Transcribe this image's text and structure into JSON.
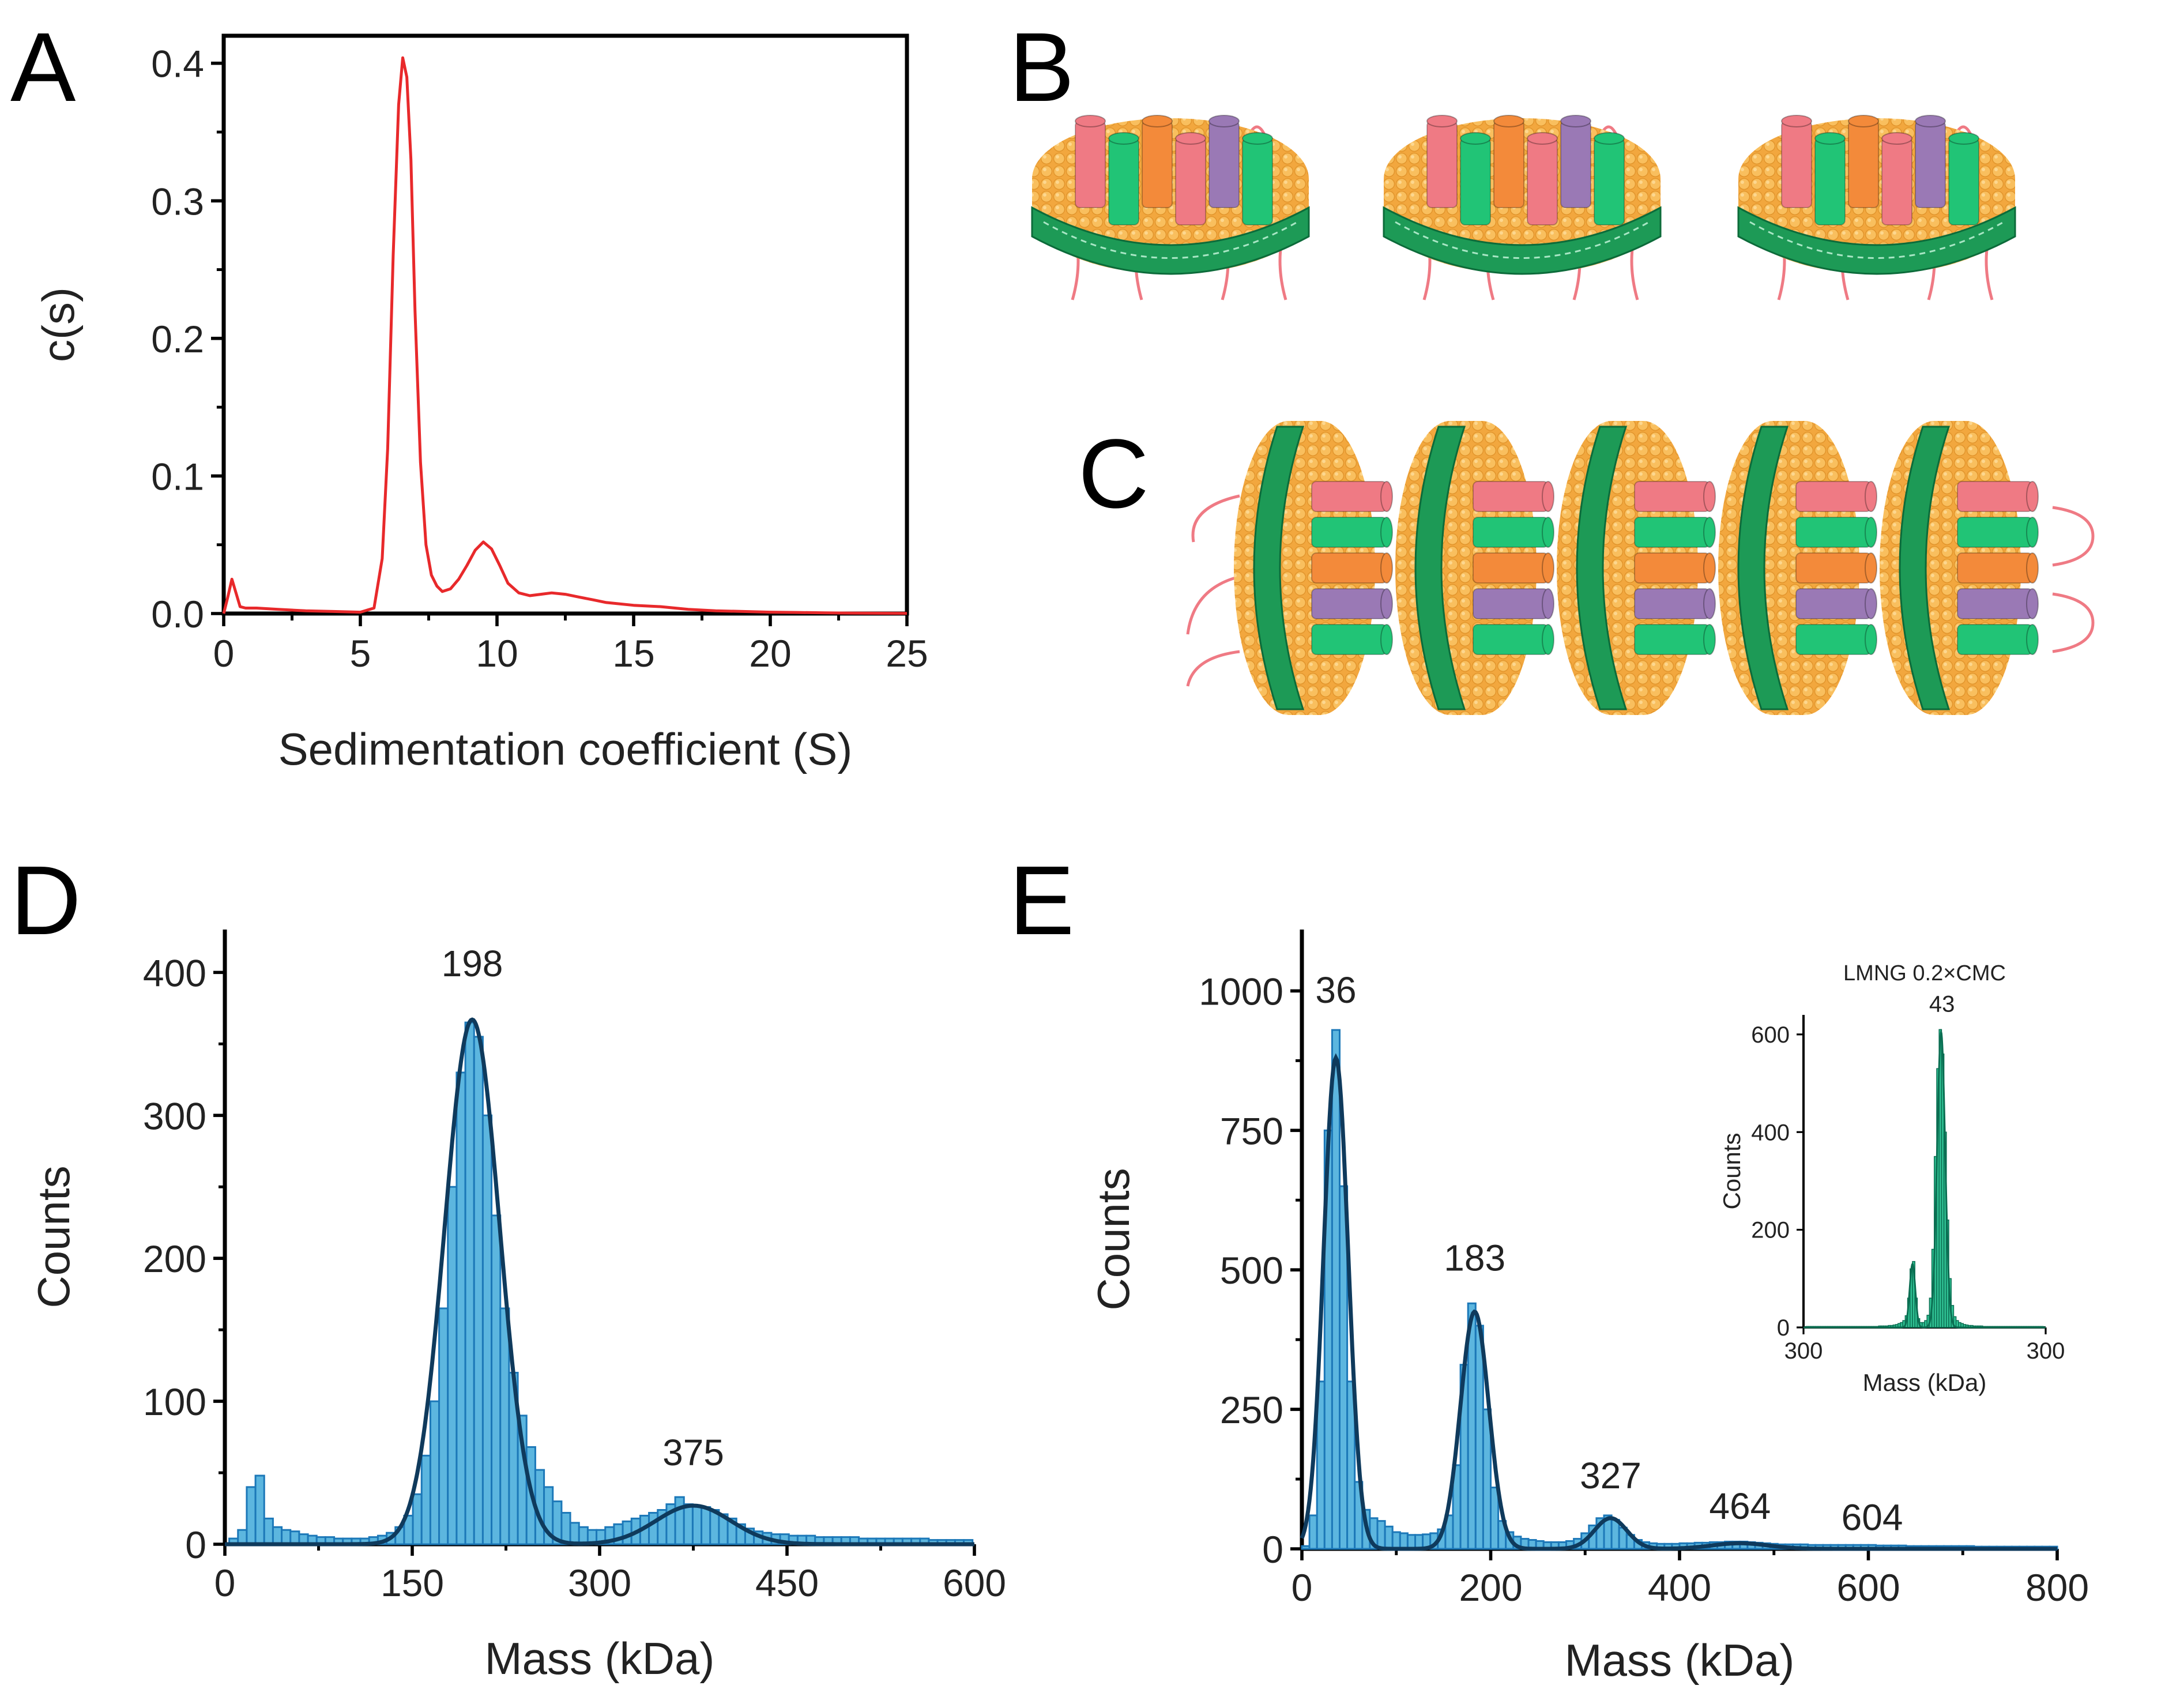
{
  "panels": {
    "a": "A",
    "b": "B",
    "c": "C",
    "d": "D",
    "e": "E"
  },
  "colors": {
    "line_red": "#e8292b",
    "hist_fill": "#5cb6df",
    "hist_edge": "#1c78b8",
    "fit_dark": "#0f3a5c",
    "inset_fill": "#2fc193",
    "inset_line": "#0b6e52",
    "lipid": "#f7b049",
    "belt": "#1d9a56",
    "helix_pink": "#ef7a84",
    "helix_green": "#21c476",
    "helix_orange": "#f38a3a",
    "helix_purple": "#9a79b5"
  },
  "illustration": {
    "b_description_icons": [
      "nanodisc-icon",
      "nanodisc-icon",
      "nanodisc-icon"
    ],
    "c_description_icons": [
      "nanodisc-icon",
      "nanodisc-icon",
      "nanodisc-icon",
      "nanodisc-icon",
      "nanodisc-icon"
    ]
  },
  "chart_data": [
    {
      "id": "A",
      "type": "line",
      "xlabel": "Sedimentation coefficient (S)",
      "ylabel": "c(s)",
      "xlim": [
        0,
        25
      ],
      "ylim": [
        0,
        0.42
      ],
      "xticks": [
        0,
        5,
        10,
        15,
        20,
        25
      ],
      "xtick_labels": [
        "0",
        "5",
        "10",
        "15",
        "20",
        "25"
      ],
      "yticks": [
        0.0,
        0.1,
        0.2,
        0.3,
        0.4
      ],
      "ytick_labels": [
        "0.0",
        "0.1",
        "0.2",
        "0.3",
        "0.4"
      ],
      "x": [
        0,
        0.15,
        0.3,
        0.45,
        0.6,
        0.8,
        1.2,
        2,
        3,
        4,
        5,
        5.5,
        5.8,
        6.0,
        6.2,
        6.4,
        6.55,
        6.7,
        6.85,
        7.0,
        7.2,
        7.4,
        7.6,
        7.8,
        8.0,
        8.3,
        8.6,
        8.9,
        9.2,
        9.5,
        9.8,
        10.1,
        10.4,
        10.8,
        11.2,
        11.6,
        12.0,
        12.5,
        13.0,
        13.5,
        14.0,
        15.0,
        16.0,
        17.0,
        18.0,
        19.0,
        20.0,
        21.0,
        22.0,
        23.0,
        24.0,
        25.0
      ],
      "y": [
        0.0,
        0.012,
        0.025,
        0.015,
        0.005,
        0.004,
        0.004,
        0.003,
        0.002,
        0.0015,
        0.001,
        0.004,
        0.04,
        0.12,
        0.26,
        0.37,
        0.404,
        0.39,
        0.33,
        0.22,
        0.11,
        0.05,
        0.028,
        0.02,
        0.016,
        0.018,
        0.025,
        0.035,
        0.046,
        0.052,
        0.047,
        0.035,
        0.022,
        0.015,
        0.013,
        0.014,
        0.015,
        0.014,
        0.012,
        0.01,
        0.008,
        0.006,
        0.005,
        0.003,
        0.002,
        0.0015,
        0.001,
        0.0008,
        0.0005,
        0.0003,
        0.0002,
        0.0001
      ]
    },
    {
      "id": "D",
      "type": "bar",
      "xlabel": "Mass (kDa)",
      "ylabel": "Counts",
      "xlim": [
        0,
        600
      ],
      "ylim": [
        0,
        430
      ],
      "xticks": [
        0,
        150,
        300,
        450,
        600
      ],
      "xtick_labels": [
        "0",
        "150",
        "300",
        "450",
        "600"
      ],
      "yticks": [
        0,
        100,
        200,
        300,
        400
      ],
      "ytick_labels": [
        "0",
        "100",
        "200",
        "300",
        "400"
      ],
      "peak_labels": [
        {
          "x": 198,
          "y": 390,
          "text": "198"
        },
        {
          "x": 375,
          "y": 48,
          "text": "375"
        }
      ],
      "bin_width": 7,
      "bins": [
        [
          7,
          4
        ],
        [
          14,
          10
        ],
        [
          21,
          40
        ],
        [
          28,
          48
        ],
        [
          35,
          18
        ],
        [
          42,
          12
        ],
        [
          49,
          10
        ],
        [
          56,
          9
        ],
        [
          63,
          7
        ],
        [
          70,
          6
        ],
        [
          77,
          5
        ],
        [
          84,
          5
        ],
        [
          91,
          4
        ],
        [
          98,
          4
        ],
        [
          105,
          4
        ],
        [
          112,
          4
        ],
        [
          119,
          5
        ],
        [
          126,
          6
        ],
        [
          133,
          8
        ],
        [
          140,
          12
        ],
        [
          147,
          20
        ],
        [
          154,
          35
        ],
        [
          161,
          62
        ],
        [
          168,
          100
        ],
        [
          175,
          165
        ],
        [
          182,
          250
        ],
        [
          189,
          330
        ],
        [
          196,
          365
        ],
        [
          203,
          355
        ],
        [
          210,
          300
        ],
        [
          217,
          230
        ],
        [
          224,
          165
        ],
        [
          231,
          120
        ],
        [
          238,
          90
        ],
        [
          245,
          68
        ],
        [
          252,
          52
        ],
        [
          259,
          40
        ],
        [
          266,
          30
        ],
        [
          273,
          22
        ],
        [
          280,
          15
        ],
        [
          287,
          12
        ],
        [
          294,
          10
        ],
        [
          301,
          10
        ],
        [
          308,
          12
        ],
        [
          315,
          14
        ],
        [
          322,
          16
        ],
        [
          329,
          18
        ],
        [
          336,
          20
        ],
        [
          343,
          22
        ],
        [
          350,
          24
        ],
        [
          357,
          28
        ],
        [
          364,
          33
        ],
        [
          371,
          28
        ],
        [
          378,
          27
        ],
        [
          385,
          26
        ],
        [
          392,
          24
        ],
        [
          399,
          21
        ],
        [
          406,
          18
        ],
        [
          413,
          14
        ],
        [
          420,
          11
        ],
        [
          427,
          9
        ],
        [
          434,
          8
        ],
        [
          441,
          7
        ],
        [
          448,
          7
        ],
        [
          455,
          6
        ],
        [
          462,
          6
        ],
        [
          469,
          6
        ],
        [
          476,
          5
        ],
        [
          483,
          5
        ],
        [
          490,
          5
        ],
        [
          497,
          5
        ],
        [
          504,
          5
        ],
        [
          511,
          4
        ],
        [
          518,
          4
        ],
        [
          525,
          4
        ],
        [
          532,
          4
        ],
        [
          539,
          4
        ],
        [
          546,
          4
        ],
        [
          553,
          4
        ],
        [
          560,
          4
        ],
        [
          567,
          3
        ],
        [
          574,
          3
        ],
        [
          581,
          3
        ],
        [
          588,
          3
        ],
        [
          595,
          3
        ]
      ],
      "fit": [
        {
          "mu": 198,
          "sigma": 22,
          "amp": 367
        },
        {
          "mu": 375,
          "sigma": 30,
          "amp": 27
        }
      ]
    },
    {
      "id": "E",
      "type": "bar",
      "xlabel": "Mass (kDa)",
      "ylabel": "Counts",
      "xlim": [
        0,
        800
      ],
      "ylim": [
        0,
        1110
      ],
      "xticks": [
        0,
        200,
        400,
        600,
        800
      ],
      "xtick_labels": [
        "0",
        "200",
        "400",
        "600",
        "800"
      ],
      "yticks": [
        0,
        250,
        500,
        750,
        1000
      ],
      "ytick_labels": [
        "0",
        "250",
        "500",
        "750",
        "1000"
      ],
      "peak_labels": [
        {
          "x": 36,
          "y": 960,
          "text": "36"
        },
        {
          "x": 183,
          "y": 480,
          "text": "183"
        },
        {
          "x": 327,
          "y": 90,
          "text": "327"
        },
        {
          "x": 464,
          "y": 35,
          "text": "464"
        },
        {
          "x": 604,
          "y": 15,
          "text": "604"
        }
      ],
      "bin_width": 8,
      "bins": [
        [
          4,
          5
        ],
        [
          12,
          60
        ],
        [
          20,
          300
        ],
        [
          28,
          750
        ],
        [
          36,
          930
        ],
        [
          44,
          650
        ],
        [
          52,
          300
        ],
        [
          60,
          120
        ],
        [
          68,
          70
        ],
        [
          76,
          55
        ],
        [
          84,
          50
        ],
        [
          92,
          40
        ],
        [
          100,
          30
        ],
        [
          108,
          28
        ],
        [
          116,
          25
        ],
        [
          124,
          25
        ],
        [
          132,
          26
        ],
        [
          140,
          28
        ],
        [
          148,
          35
        ],
        [
          156,
          60
        ],
        [
          164,
          150
        ],
        [
          172,
          330
        ],
        [
          180,
          440
        ],
        [
          188,
          400
        ],
        [
          196,
          250
        ],
        [
          204,
          110
        ],
        [
          212,
          50
        ],
        [
          220,
          30
        ],
        [
          228,
          22
        ],
        [
          236,
          18
        ],
        [
          244,
          16
        ],
        [
          252,
          14
        ],
        [
          260,
          12
        ],
        [
          268,
          12
        ],
        [
          276,
          12
        ],
        [
          284,
          14
        ],
        [
          292,
          18
        ],
        [
          300,
          28
        ],
        [
          308,
          42
        ],
        [
          316,
          55
        ],
        [
          324,
          60
        ],
        [
          332,
          52
        ],
        [
          340,
          38
        ],
        [
          348,
          25
        ],
        [
          356,
          16
        ],
        [
          364,
          12
        ],
        [
          372,
          10
        ],
        [
          380,
          9
        ],
        [
          388,
          9
        ],
        [
          396,
          9
        ],
        [
          404,
          10
        ],
        [
          412,
          10
        ],
        [
          420,
          11
        ],
        [
          428,
          11
        ],
        [
          436,
          12
        ],
        [
          444,
          12
        ],
        [
          452,
          13
        ],
        [
          460,
          13
        ],
        [
          468,
          13
        ],
        [
          476,
          12
        ],
        [
          484,
          11
        ],
        [
          492,
          10
        ],
        [
          500,
          9
        ],
        [
          508,
          8
        ],
        [
          516,
          8
        ],
        [
          524,
          8
        ],
        [
          532,
          8
        ],
        [
          540,
          7
        ],
        [
          548,
          7
        ],
        [
          556,
          7
        ],
        [
          564,
          7
        ],
        [
          572,
          7
        ],
        [
          580,
          7
        ],
        [
          588,
          7
        ],
        [
          596,
          7
        ],
        [
          604,
          7
        ],
        [
          612,
          6
        ],
        [
          620,
          6
        ],
        [
          628,
          6
        ],
        [
          636,
          6
        ],
        [
          644,
          5
        ],
        [
          652,
          5
        ],
        [
          660,
          5
        ],
        [
          668,
          5
        ],
        [
          676,
          5
        ],
        [
          684,
          5
        ],
        [
          692,
          5
        ],
        [
          700,
          5
        ],
        [
          708,
          5
        ],
        [
          716,
          4
        ],
        [
          724,
          4
        ],
        [
          732,
          4
        ],
        [
          740,
          4
        ],
        [
          748,
          4
        ],
        [
          756,
          4
        ],
        [
          764,
          4
        ],
        [
          772,
          4
        ],
        [
          780,
          4
        ],
        [
          788,
          4
        ],
        [
          796,
          4
        ]
      ],
      "fit": [
        {
          "mu": 36,
          "sigma": 13,
          "amp": 880
        },
        {
          "mu": 183,
          "sigma": 15,
          "amp": 425
        },
        {
          "mu": 327,
          "sigma": 17,
          "amp": 55
        },
        {
          "mu": 464,
          "sigma": 30,
          "amp": 10
        }
      ]
    },
    {
      "id": "E-inset",
      "type": "bar",
      "title": "LMNG 0.2×CMC",
      "xlabel": "Mass (kDa)",
      "ylabel": "Counts",
      "xlim": [
        -300,
        300
      ],
      "ylim": [
        0,
        640
      ],
      "xticks": [
        -300,
        300
      ],
      "xtick_labels": [
        "300",
        "300"
      ],
      "yticks": [
        0,
        200,
        400,
        600
      ],
      "ytick_labels": [
        "0",
        "200",
        "400",
        "600"
      ],
      "peak_labels": [
        {
          "x": 43,
          "y": 625,
          "text": "43"
        }
      ],
      "bin_width": 6,
      "bins": [
        [
          -291,
          2
        ],
        [
          -285,
          2
        ],
        [
          -279,
          2
        ],
        [
          -273,
          2
        ],
        [
          -267,
          2
        ],
        [
          -261,
          2
        ],
        [
          -255,
          2
        ],
        [
          -249,
          2
        ],
        [
          -243,
          2
        ],
        [
          -237,
          2
        ],
        [
          -231,
          2
        ],
        [
          -225,
          2
        ],
        [
          -219,
          2
        ],
        [
          -213,
          2
        ],
        [
          -207,
          2
        ],
        [
          -201,
          2
        ],
        [
          -195,
          2
        ],
        [
          -189,
          2
        ],
        [
          -183,
          2
        ],
        [
          -177,
          2
        ],
        [
          -171,
          2
        ],
        [
          -165,
          2
        ],
        [
          -159,
          2
        ],
        [
          -153,
          2
        ],
        [
          -147,
          2
        ],
        [
          -141,
          2
        ],
        [
          -135,
          2
        ],
        [
          -129,
          2
        ],
        [
          -123,
          2
        ],
        [
          -117,
          2
        ],
        [
          -111,
          3
        ],
        [
          -105,
          3
        ],
        [
          -99,
          3
        ],
        [
          -93,
          3
        ],
        [
          -87,
          4
        ],
        [
          -81,
          4
        ],
        [
          -75,
          5
        ],
        [
          -69,
          6
        ],
        [
          -63,
          8
        ],
        [
          -57,
          10
        ],
        [
          -51,
          14
        ],
        [
          -45,
          24
        ],
        [
          -39,
          60
        ],
        [
          -33,
          120
        ],
        [
          -27,
          135
        ],
        [
          -21,
          60
        ],
        [
          -15,
          18
        ],
        [
          -9,
          10
        ],
        [
          -3,
          10
        ],
        [
          3,
          14
        ],
        [
          9,
          25
        ],
        [
          15,
          60
        ],
        [
          21,
          160
        ],
        [
          27,
          350
        ],
        [
          33,
          530
        ],
        [
          39,
          610
        ],
        [
          45,
          560
        ],
        [
          51,
          400
        ],
        [
          57,
          220
        ],
        [
          63,
          100
        ],
        [
          69,
          45
        ],
        [
          75,
          22
        ],
        [
          81,
          14
        ],
        [
          87,
          10
        ],
        [
          93,
          8
        ],
        [
          99,
          6
        ],
        [
          105,
          5
        ],
        [
          111,
          4
        ],
        [
          117,
          4
        ],
        [
          123,
          3
        ],
        [
          129,
          3
        ],
        [
          135,
          3
        ],
        [
          141,
          3
        ],
        [
          147,
          2
        ],
        [
          153,
          2
        ],
        [
          159,
          2
        ],
        [
          165,
          2
        ],
        [
          171,
          2
        ],
        [
          177,
          2
        ],
        [
          183,
          2
        ],
        [
          189,
          2
        ],
        [
          195,
          2
        ],
        [
          201,
          2
        ],
        [
          207,
          2
        ],
        [
          213,
          2
        ],
        [
          219,
          2
        ],
        [
          225,
          2
        ],
        [
          231,
          2
        ],
        [
          237,
          2
        ],
        [
          243,
          2
        ],
        [
          249,
          2
        ],
        [
          255,
          2
        ],
        [
          261,
          2
        ],
        [
          267,
          2
        ],
        [
          273,
          2
        ],
        [
          279,
          2
        ],
        [
          285,
          2
        ],
        [
          291,
          2
        ]
      ],
      "fit": [
        {
          "mu": -30,
          "sigma": 7,
          "amp": 130
        },
        {
          "mu": 41,
          "sigma": 10,
          "amp": 605
        }
      ]
    }
  ]
}
